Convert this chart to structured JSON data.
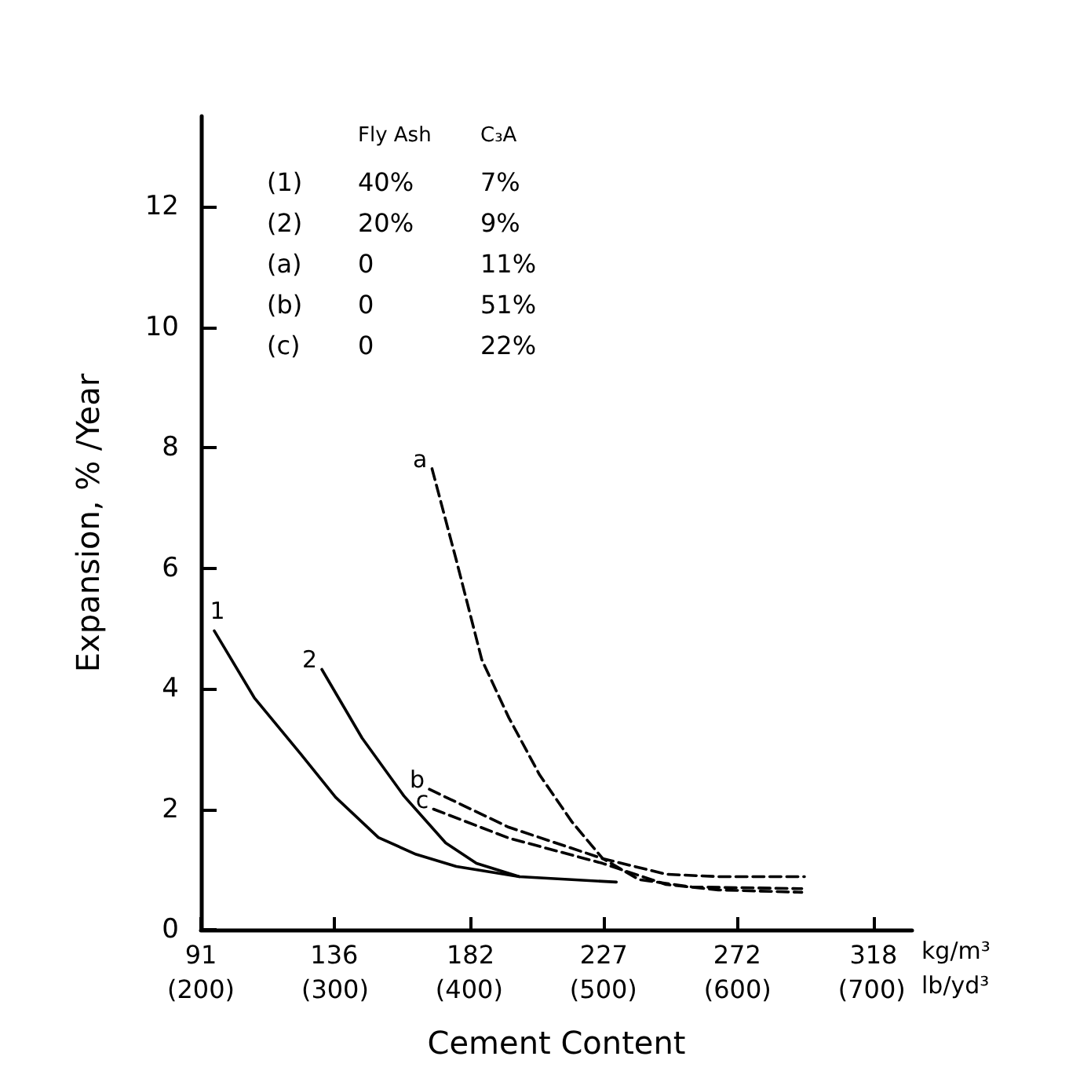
{
  "chart_data": {
    "type": "line",
    "xlabel": "Cement Content",
    "ylabel": "Expansion, % /Year",
    "xlim": [
      91,
      331
    ],
    "xticks": [
      91,
      136,
      182,
      227,
      272,
      318
    ],
    "x2lim": [
      200,
      730
    ],
    "x2ticks": [
      {
        "value": 200,
        "label": "(200)"
      },
      {
        "value": 300,
        "label": "(300)"
      },
      {
        "value": 400,
        "label": "(400)"
      },
      {
        "value": 500,
        "label": "(500)"
      },
      {
        "value": 600,
        "label": "(600)"
      },
      {
        "value": 700,
        "label": "(700)"
      }
    ],
    "ylim": [
      0,
      13.5
    ],
    "yticks": [
      0,
      2,
      4,
      6,
      8,
      10,
      12
    ],
    "grid": false,
    "legend": false,
    "marker": "none",
    "series": [
      {
        "name": "1",
        "color": "#000000",
        "line_style": "solid",
        "x": [
          95.5,
          109,
          124.6,
          136.4,
          150.9,
          163.6,
          177.2,
          198.5,
          231.2
        ],
        "values": [
          4.96,
          3.85,
          2.92,
          2.2,
          1.53,
          1.25,
          1.05,
          0.88,
          0.79
        ]
      },
      {
        "name": "2",
        "color": "#000000",
        "line_style": "solid",
        "x": [
          131.8,
          145.4,
          159.5,
          173.6,
          184,
          198.5
        ],
        "values": [
          4.32,
          3.18,
          2.22,
          1.44,
          1.1,
          0.88
        ]
      },
      {
        "name": "a",
        "color": "#000000",
        "line_style": "dashed",
        "x": [
          169,
          177.2,
          185.8,
          194.9,
          205.3,
          216.2,
          226.6,
          238.9,
          256.6,
          293.8
        ],
        "values": [
          7.65,
          6.13,
          4.48,
          3.52,
          2.57,
          1.79,
          1.18,
          0.83,
          0.71,
          0.68
        ]
      },
      {
        "name": "b",
        "color": "#000000",
        "line_style": "dashed",
        "x": [
          168.1,
          194.9,
          226.6,
          248,
          265.6,
          294.7
        ],
        "values": [
          2.33,
          1.7,
          1.18,
          0.92,
          0.88,
          0.88
        ]
      },
      {
        "name": "c",
        "color": "#000000",
        "line_style": "dashed",
        "x": [
          169.5,
          194.9,
          226.6,
          248,
          265.6,
          293.8
        ],
        "values": [
          2.0,
          1.52,
          1.1,
          0.75,
          0.66,
          0.62
        ]
      }
    ],
    "annotations": [
      "kg/m³",
      "lb/yd³",
      "Fly Ash",
      "C₃A",
      "(1)",
      "40%",
      "7%",
      "(2)",
      "20%",
      "9%",
      "(a)",
      "0",
      "11%",
      "(b)",
      "0",
      "51%",
      "(c)",
      "0",
      "22%"
    ]
  }
}
